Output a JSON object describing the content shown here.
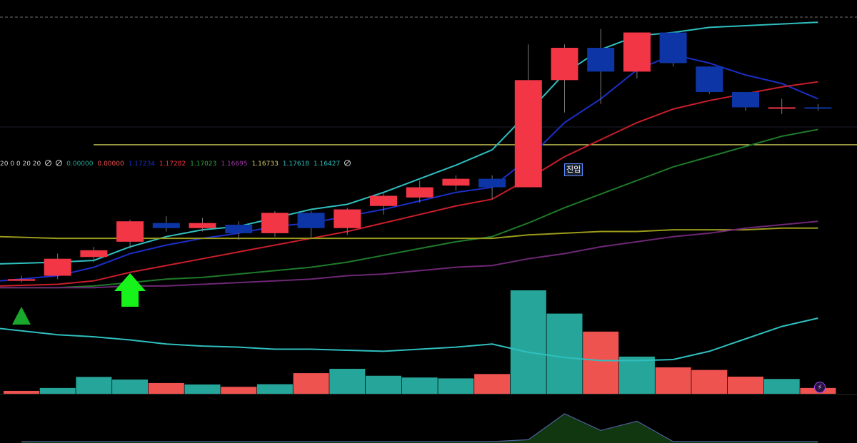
{
  "chart_data": {
    "type": "candlestick",
    "candles": [
      {
        "o": 0.06,
        "c": 0.07,
        "h": 0.09,
        "l": 0.05,
        "dir": "up"
      },
      {
        "o": 0.09,
        "c": 0.19,
        "h": 0.22,
        "l": 0.07,
        "dir": "up"
      },
      {
        "o": 0.2,
        "c": 0.24,
        "h": 0.26,
        "l": 0.17,
        "dir": "up"
      },
      {
        "o": 0.29,
        "c": 0.41,
        "h": 0.42,
        "l": 0.25,
        "dir": "up"
      },
      {
        "o": 0.4,
        "c": 0.37,
        "h": 0.44,
        "l": 0.35,
        "dir": "down"
      },
      {
        "o": 0.37,
        "c": 0.4,
        "h": 0.43,
        "l": 0.35,
        "dir": "up"
      },
      {
        "o": 0.39,
        "c": 0.34,
        "h": 0.41,
        "l": 0.3,
        "dir": "down"
      },
      {
        "o": 0.34,
        "c": 0.46,
        "h": 0.47,
        "l": 0.32,
        "dir": "up"
      },
      {
        "o": 0.46,
        "c": 0.37,
        "h": 0.47,
        "l": 0.31,
        "dir": "down"
      },
      {
        "o": 0.37,
        "c": 0.48,
        "h": 0.49,
        "l": 0.33,
        "dir": "up"
      },
      {
        "o": 0.5,
        "c": 0.56,
        "h": 0.58,
        "l": 0.45,
        "dir": "up"
      },
      {
        "o": 0.55,
        "c": 0.61,
        "h": 0.65,
        "l": 0.52,
        "dir": "up"
      },
      {
        "o": 0.62,
        "c": 0.66,
        "h": 0.68,
        "l": 0.59,
        "dir": "up"
      },
      {
        "o": 0.66,
        "c": 0.61,
        "h": 0.68,
        "l": 0.54,
        "dir": "down"
      },
      {
        "o": 0.61,
        "c": 1.24,
        "h": 1.45,
        "l": 0.61,
        "dir": "up"
      },
      {
        "o": 1.24,
        "c": 1.43,
        "h": 1.45,
        "l": 1.05,
        "dir": "up"
      },
      {
        "o": 1.43,
        "c": 1.29,
        "h": 1.54,
        "l": 1.1,
        "dir": "down"
      },
      {
        "o": 1.29,
        "c": 1.52,
        "h": 1.52,
        "l": 1.25,
        "dir": "up"
      },
      {
        "o": 1.52,
        "c": 1.34,
        "h": 1.52,
        "l": 1.32,
        "dir": "down"
      },
      {
        "o": 1.32,
        "c": 1.17,
        "h": 1.32,
        "l": 1.16,
        "dir": "down"
      },
      {
        "o": 1.17,
        "c": 1.08,
        "h": 1.17,
        "l": 1.06,
        "dir": "down"
      },
      {
        "o": 1.08,
        "c": 1.08,
        "h": 1.13,
        "l": 1.04,
        "dir": "up"
      },
      {
        "o": 1.08,
        "c": 1.08,
        "h": 1.1,
        "l": 1.06,
        "dir": "down"
      }
    ],
    "volume": [
      {
        "v": 10,
        "dir": "up"
      },
      {
        "v": 20,
        "dir": "down"
      },
      {
        "v": 58,
        "dir": "down"
      },
      {
        "v": 49,
        "dir": "down"
      },
      {
        "v": 37,
        "dir": "up"
      },
      {
        "v": 32,
        "dir": "down"
      },
      {
        "v": 24,
        "dir": "up"
      },
      {
        "v": 33,
        "dir": "down"
      },
      {
        "v": 71,
        "dir": "up"
      },
      {
        "v": 86,
        "dir": "down"
      },
      {
        "v": 62,
        "dir": "down"
      },
      {
        "v": 56,
        "dir": "down"
      },
      {
        "v": 53,
        "dir": "down"
      },
      {
        "v": 68,
        "dir": "up"
      },
      {
        "v": 356,
        "dir": "down"
      },
      {
        "v": 276,
        "dir": "down"
      },
      {
        "v": 214,
        "dir": "up"
      },
      {
        "v": 128,
        "dir": "down"
      },
      {
        "v": 91,
        "dir": "up"
      },
      {
        "v": 82,
        "dir": "up"
      },
      {
        "v": 59,
        "dir": "up"
      },
      {
        "v": 51,
        "dir": "down"
      },
      {
        "v": 20,
        "dir": "up"
      }
    ],
    "overlay_series": [
      {
        "color": "#2fbfbf",
        "values": [
          0.16,
          0.17,
          0.18,
          0.26,
          0.32,
          0.36,
          0.38,
          0.43,
          0.48,
          0.51,
          0.58,
          0.66,
          0.74,
          0.83,
          1.05,
          1.28,
          1.42,
          1.5,
          1.52,
          1.55,
          1.56,
          1.57,
          1.58
        ]
      },
      {
        "color": "#1b2fc8",
        "values": [
          0.06,
          0.09,
          0.14,
          0.22,
          0.27,
          0.31,
          0.34,
          0.38,
          0.4,
          0.44,
          0.48,
          0.53,
          0.58,
          0.61,
          0.78,
          0.99,
          1.13,
          1.3,
          1.39,
          1.34,
          1.27,
          1.22,
          1.13
        ]
      },
      {
        "color": "#c81e2a",
        "values": [
          0.03,
          0.04,
          0.06,
          0.11,
          0.15,
          0.19,
          0.23,
          0.27,
          0.31,
          0.35,
          0.4,
          0.45,
          0.5,
          0.54,
          0.66,
          0.79,
          0.89,
          0.99,
          1.07,
          1.12,
          1.16,
          1.2,
          1.23
        ]
      },
      {
        "color": "#1f7a2a",
        "values": [
          0.02,
          0.02,
          0.03,
          0.05,
          0.07,
          0.08,
          0.1,
          0.12,
          0.14,
          0.17,
          0.21,
          0.25,
          0.29,
          0.32,
          0.4,
          0.49,
          0.57,
          0.65,
          0.73,
          0.79,
          0.85,
          0.91,
          0.95
        ]
      },
      {
        "color": "#9a9a1c",
        "values": [
          0.32,
          0.31,
          0.31,
          0.31,
          0.31,
          0.31,
          0.31,
          0.31,
          0.31,
          0.31,
          0.31,
          0.31,
          0.31,
          0.31,
          0.33,
          0.34,
          0.35,
          0.35,
          0.36,
          0.36,
          0.36,
          0.37,
          0.37
        ]
      },
      {
        "color": "#6e2775",
        "values": [
          0.02,
          0.02,
          0.02,
          0.03,
          0.03,
          0.04,
          0.05,
          0.06,
          0.07,
          0.09,
          0.1,
          0.12,
          0.14,
          0.15,
          0.19,
          0.22,
          0.26,
          0.29,
          0.32,
          0.34,
          0.37,
          0.39,
          0.41
        ]
      }
    ],
    "volume_line": [
      0.7,
      0.64,
      0.62,
      0.59,
      0.55,
      0.53,
      0.52,
      0.5,
      0.5,
      0.49,
      0.48,
      0.5,
      0.52,
      0.55,
      0.47,
      0.42,
      0.39,
      0.39,
      0.4,
      0.48,
      0.6,
      0.72,
      0.8
    ],
    "horizontal_line_value": 0.86,
    "oscillator": [
      0,
      0,
      0,
      0,
      0,
      0,
      0,
      0,
      0,
      0,
      0,
      0,
      0,
      0,
      0.02,
      0.3,
      0.12,
      0.22,
      0.0,
      0,
      0,
      0,
      0
    ],
    "markers": [
      {
        "index": 0,
        "type": "triangle-up",
        "color": "#1aa82c"
      },
      {
        "index": 3,
        "type": "arrow-up",
        "color": "#17f21a"
      }
    ],
    "colors": {
      "up": "#f23645",
      "down": "#0e35a5",
      "volume_up": "#26a69a",
      "volume_down": "#ef5350",
      "horizontal_line": "#f5f26a"
    }
  },
  "legend": [
    {
      "text": "20 0 0 20 20",
      "color": "#d0d0d0"
    },
    {
      "text": "",
      "color": "#d0d0d0",
      "icon": "circle-slash-icon"
    },
    {
      "text": "",
      "color": "#d0d0d0",
      "icon": "circle-slash-icon"
    },
    {
      "text": "0.00000",
      "color": "#26a69a"
    },
    {
      "text": "0.00000",
      "color": "#ef5350"
    },
    {
      "text": "1.17234",
      "color": "#1b2fc8"
    },
    {
      "text": "1.17282",
      "color": "#f23645"
    },
    {
      "text": "1.17023",
      "color": "#2fa33a"
    },
    {
      "text": "1.16695",
      "color": "#9b3aa6"
    },
    {
      "text": "1.16733",
      "color": "#d8d06a"
    },
    {
      "text": "1.17618",
      "color": "#2fbfbf"
    },
    {
      "text": "1.16427",
      "color": "#2fbfbf"
    },
    {
      "text": "",
      "color": "#d0d0d0",
      "icon": "circle-slash-icon"
    }
  ],
  "entry_label": "진입",
  "bolt_icon": "lightning-icon"
}
